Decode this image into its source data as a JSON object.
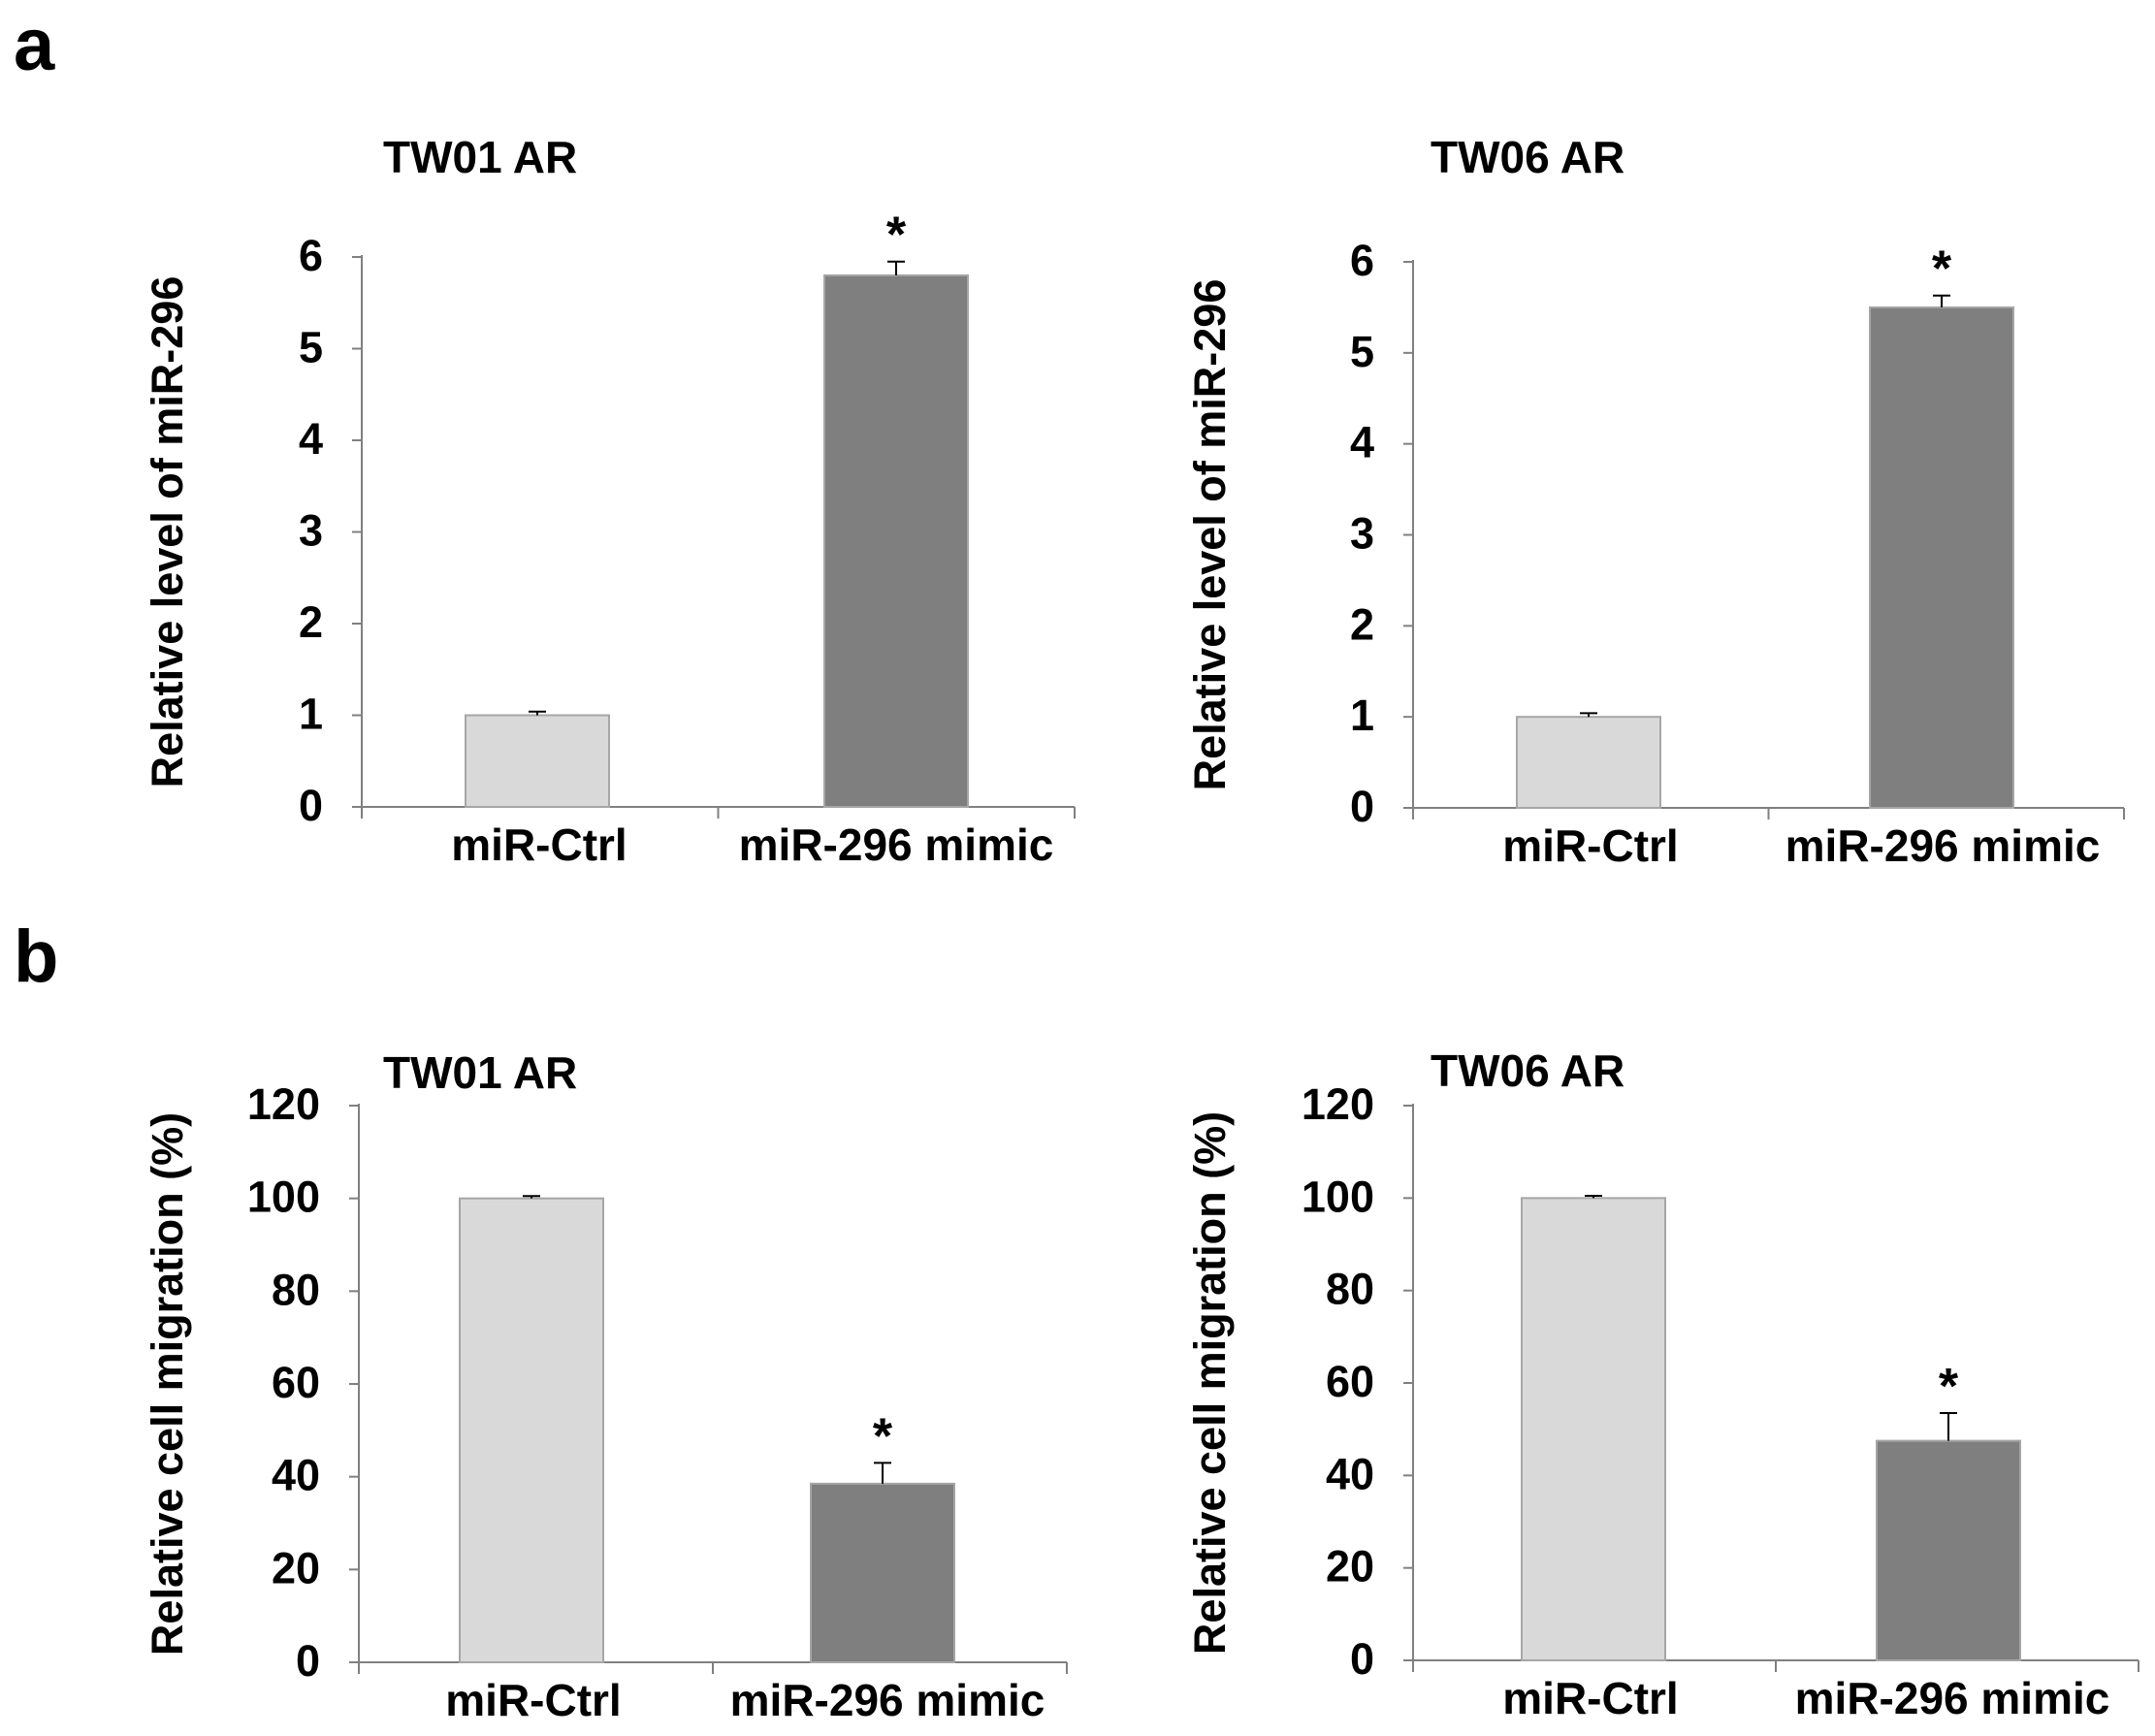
{
  "panels": [
    {
      "label": "a"
    },
    {
      "label": "b"
    }
  ],
  "chart_data": [
    {
      "type": "bar",
      "title": "TW01 AR",
      "ylabel": "Relative level of miR-296",
      "xlabel": "",
      "categories": [
        "miR-Ctrl",
        "miR-296 mimic"
      ],
      "values": [
        1.0,
        5.8
      ],
      "errors": [
        0.04,
        0.15
      ],
      "significance": [
        "",
        "*"
      ],
      "bar_colors": [
        "#d9d9d9",
        "#7f7f7f"
      ],
      "ylim": [
        0,
        6
      ],
      "yticks": [
        "0",
        "1",
        "2",
        "3",
        "4",
        "5",
        "6"
      ]
    },
    {
      "type": "bar",
      "title": "TW06 AR",
      "ylabel": "Relative level of miR-296",
      "xlabel": "",
      "categories": [
        "miR-Ctrl",
        "miR-296 mimic"
      ],
      "values": [
        1.0,
        5.5
      ],
      "errors": [
        0.04,
        0.13
      ],
      "significance": [
        "",
        "*"
      ],
      "bar_colors": [
        "#d9d9d9",
        "#7f7f7f"
      ],
      "ylim": [
        0,
        6
      ],
      "yticks": [
        "0",
        "1",
        "2",
        "3",
        "4",
        "5",
        "6"
      ]
    },
    {
      "type": "bar",
      "title": "TW01 AR",
      "ylabel": "Relative cell migration  (%)",
      "xlabel": "",
      "categories": [
        "miR-Ctrl",
        "miR-296 mimic"
      ],
      "values": [
        100,
        38.5
      ],
      "errors": [
        0.5,
        4.5
      ],
      "significance": [
        "",
        "*"
      ],
      "bar_colors": [
        "#d9d9d9",
        "#7f7f7f"
      ],
      "ylim": [
        0,
        120
      ],
      "yticks": [
        "0",
        "20",
        "40",
        "60",
        "80",
        "100",
        "120"
      ]
    },
    {
      "type": "bar",
      "title": "TW06 AR",
      "ylabel": "Relative cell migration (%)",
      "xlabel": "",
      "categories": [
        "miR-Ctrl",
        "miR-296 mimic"
      ],
      "values": [
        100,
        47.5
      ],
      "errors": [
        0.5,
        6
      ],
      "significance": [
        "",
        "*"
      ],
      "bar_colors": [
        "#d9d9d9",
        "#7f7f7f"
      ],
      "ylim": [
        0,
        120
      ],
      "yticks": [
        "0",
        "20",
        "40",
        "60",
        "80",
        "100",
        "120"
      ]
    }
  ]
}
